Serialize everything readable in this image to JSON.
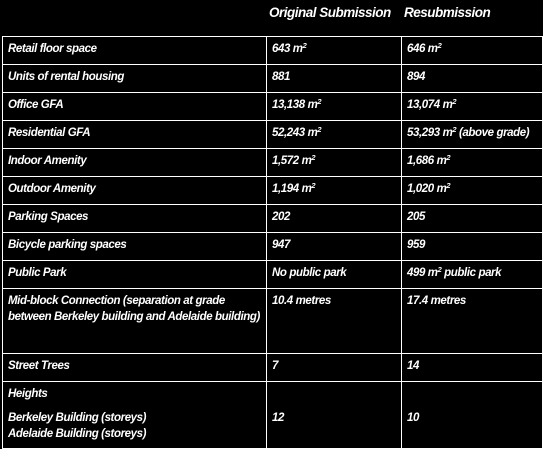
{
  "header": {
    "col_original": "Original Submission",
    "col_resubmission": "Resubmission"
  },
  "rows": [
    {
      "label": "Retail floor space",
      "original": "643 m",
      "original_sup": "2",
      "resub": "646 m",
      "resub_sup": "2",
      "resub_suffix": ""
    },
    {
      "label": "Units of rental housing",
      "original": "881",
      "original_sup": "",
      "resub": "894",
      "resub_sup": "",
      "resub_suffix": ""
    },
    {
      "label": "Office GFA",
      "original": "13,138 m",
      "original_sup": "2",
      "resub": "13,074 m",
      "resub_sup": "2",
      "resub_suffix": ""
    },
    {
      "label": "Residential GFA",
      "original": "52,243 m",
      "original_sup": "2",
      "resub": "53,293 m",
      "resub_sup": "2",
      "resub_suffix": " (above grade)"
    },
    {
      "label": "Indoor Amenity",
      "original": "1,572 m",
      "original_sup": "2",
      "resub": "1,686 m",
      "resub_sup": "2",
      "resub_suffix": ""
    },
    {
      "label": "Outdoor Amenity",
      "original": "1,194 m",
      "original_sup": "2",
      "resub": "1,020 m",
      "resub_sup": "2",
      "resub_suffix": ""
    },
    {
      "label": "Parking Spaces",
      "original": "202",
      "original_sup": "",
      "resub": "205",
      "resub_sup": "",
      "resub_suffix": ""
    },
    {
      "label": "Bicycle parking spaces",
      "original": "947",
      "original_sup": "",
      "resub": "959",
      "resub_sup": "",
      "resub_suffix": ""
    },
    {
      "label": "Public Park",
      "original": "No public park",
      "original_sup": "",
      "resub": "499 m",
      "resub_sup": "2",
      "resub_suffix": " public park"
    },
    {
      "label": "Mid-block Connection (separation at grade between Berkeley building and Adelaide building)",
      "original": "10.4 metres",
      "original_sup": "",
      "resub": "17.4 metres",
      "resub_sup": "",
      "resub_suffix": ""
    },
    {
      "label": "Street Trees",
      "original": "7",
      "original_sup": "",
      "resub": "14",
      "resub_sup": "",
      "resub_suffix": ""
    }
  ],
  "heights": {
    "title": "Heights",
    "berkeley_label": "Berkeley Building (storeys)",
    "adelaide_label": "Adelaide Building (storeys)",
    "original": "12",
    "resub": "10"
  }
}
